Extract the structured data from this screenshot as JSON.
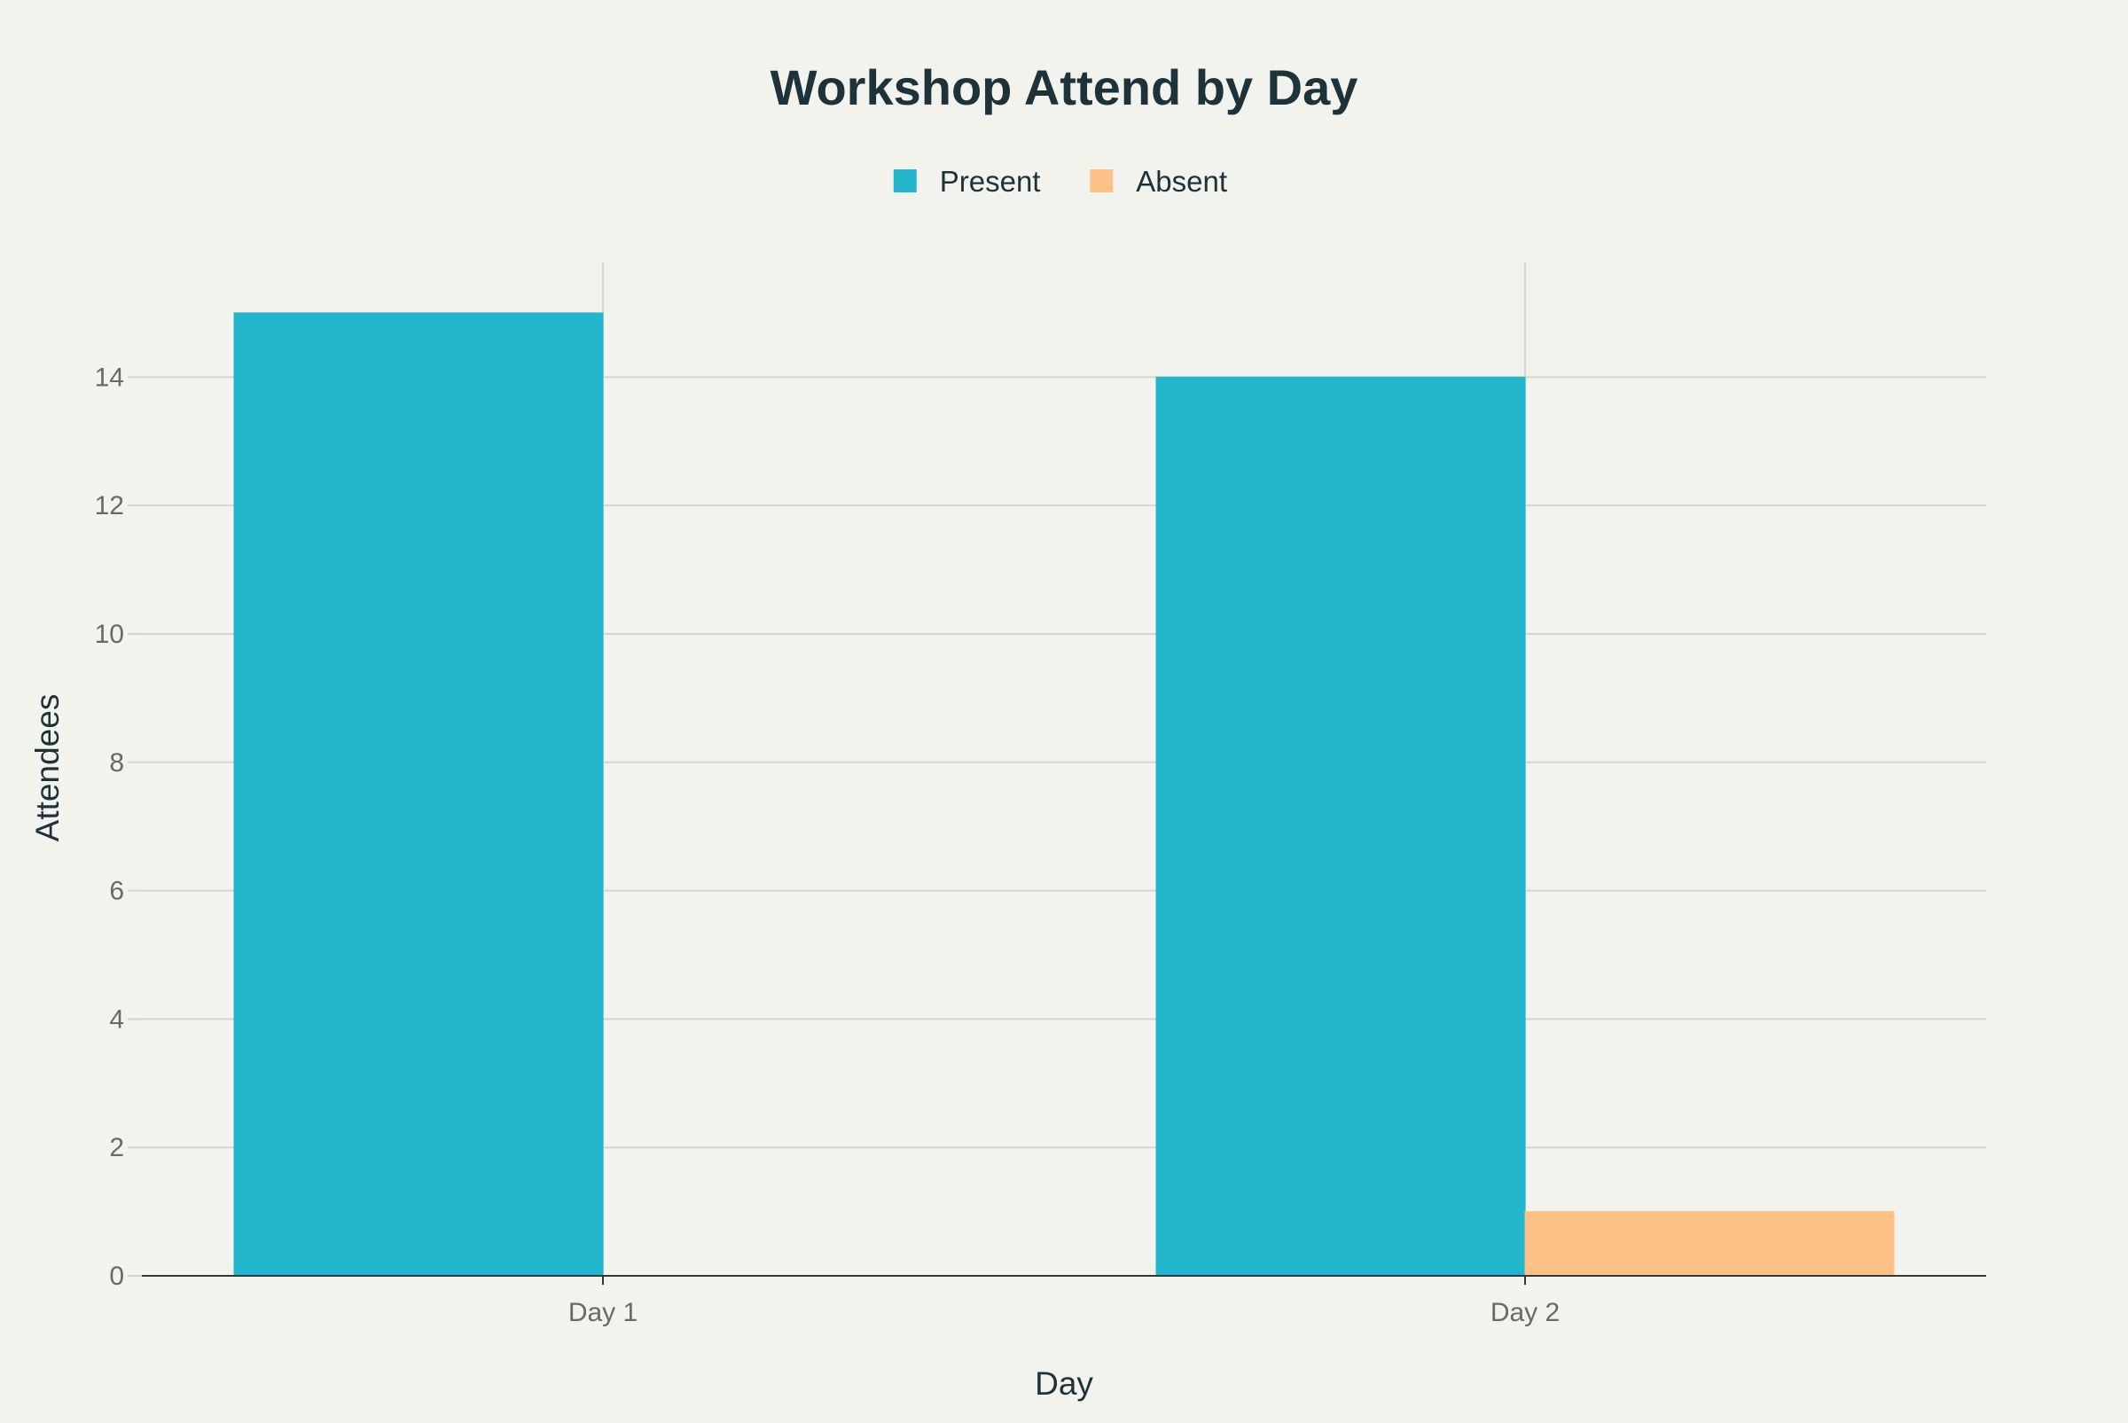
{
  "chart_data": {
    "type": "bar",
    "title": "Workshop Attend by Day",
    "xlabel": "Day",
    "ylabel": "Attendees",
    "categories": [
      "Day 1",
      "Day 2"
    ],
    "series": [
      {
        "name": "Present",
        "color": "#22b7cc",
        "values": [
          15,
          14
        ]
      },
      {
        "name": "Absent",
        "color": "#ffc188",
        "values": [
          0,
          1
        ]
      }
    ],
    "ylim": [
      0,
      15.8
    ],
    "yticks": [
      0,
      2,
      4,
      6,
      8,
      10,
      12,
      14
    ],
    "grid": true,
    "legend_position": "top-center"
  }
}
